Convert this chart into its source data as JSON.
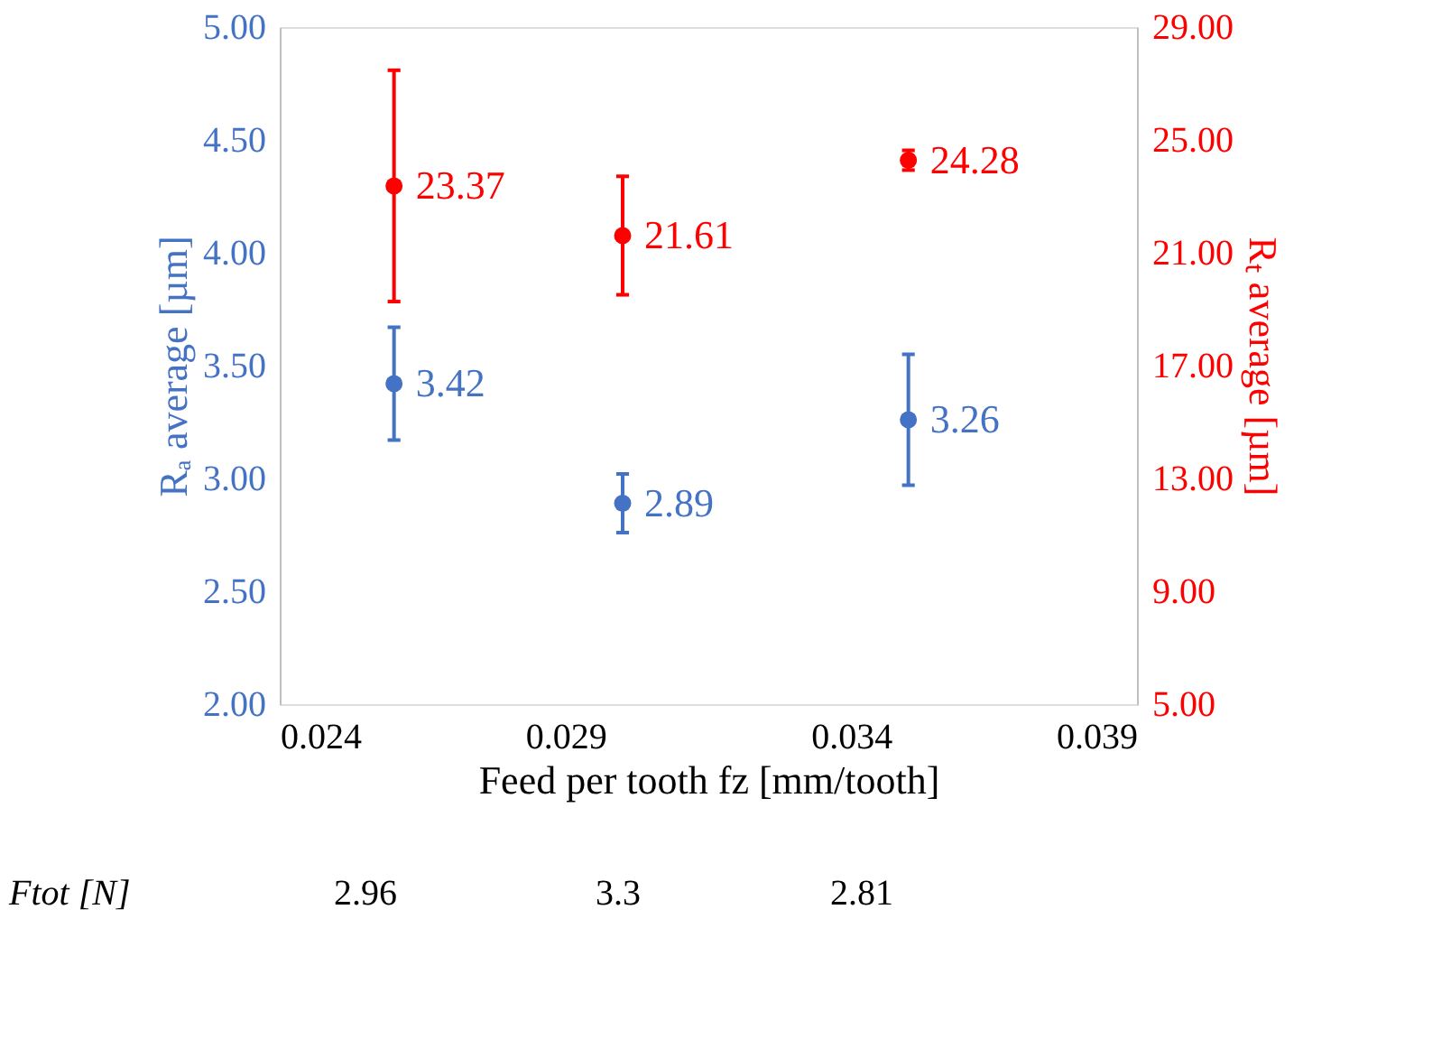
{
  "chart_data": {
    "type": "scatter",
    "xlabel": "Feed per tooth fz [mm/tooth]",
    "ylabel": "Rₐ average [µm]",
    "y2label": "Rₜ average [µm]",
    "x": [
      0.026,
      0.03,
      0.035
    ],
    "series": [
      {
        "color": "#4472c4",
        "axis": "y",
        "values": [
          3.42,
          2.89,
          3.26
        ],
        "errors": [
          0.25,
          0.13,
          0.29
        ]
      },
      {
        "color": "#ff0000",
        "axis": "y2",
        "values": [
          23.37,
          21.61,
          24.28
        ],
        "errors": [
          4.1,
          2.1,
          0.35
        ]
      }
    ],
    "xlim": [
      0.024,
      0.039
    ],
    "xticks": [
      {
        "value": 0.024,
        "label": "0.024"
      },
      {
        "value": 0.029,
        "label": "0.029"
      },
      {
        "value": 0.034,
        "label": "0.034"
      },
      {
        "value": 0.039,
        "label": "0.039"
      }
    ],
    "ylim": [
      2,
      5
    ],
    "yticks": [
      {
        "value": 2,
        "label": "2.00"
      },
      {
        "value": 2.5,
        "label": "2.50"
      },
      {
        "value": 3,
        "label": "3.00"
      },
      {
        "value": 3.5,
        "label": "3.50"
      },
      {
        "value": 4,
        "label": "4.00"
      },
      {
        "value": 4.5,
        "label": "4.50"
      },
      {
        "value": 5,
        "label": "5.00"
      }
    ],
    "y2lim": [
      5,
      29
    ],
    "y2ticks": [
      {
        "value": 5,
        "label": "5.00"
      },
      {
        "value": 9,
        "label": "9.00"
      },
      {
        "value": 13,
        "label": "13.00"
      },
      {
        "value": 17,
        "label": "17.00"
      },
      {
        "value": 21,
        "label": "21.00"
      },
      {
        "value": 25,
        "label": "25.00"
      },
      {
        "value": 29,
        "label": "29.00"
      }
    ],
    "data_labels": true,
    "grid": false,
    "legend": false,
    "marker": "circle",
    "annotations": [
      "Ftot [N]",
      "2.96",
      "3.3",
      "2.81"
    ]
  }
}
